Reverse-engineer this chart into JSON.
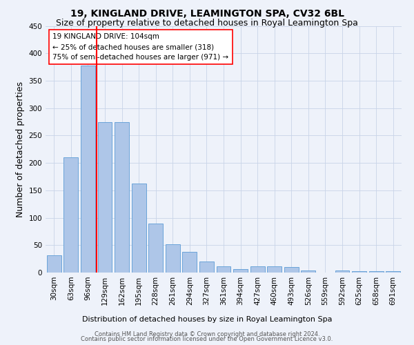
{
  "title": "19, KINGLAND DRIVE, LEAMINGTON SPA, CV32 6BL",
  "subtitle": "Size of property relative to detached houses in Royal Leamington Spa",
  "xlabel": "Distribution of detached houses by size in Royal Leamington Spa",
  "ylabel": "Number of detached properties",
  "footer_line1": "Contains HM Land Registry data © Crown copyright and database right 2024.",
  "footer_line2": "Contains public sector information licensed under the Open Government Licence v3.0.",
  "bar_labels": [
    "30sqm",
    "63sqm",
    "96sqm",
    "129sqm",
    "162sqm",
    "195sqm",
    "228sqm",
    "261sqm",
    "294sqm",
    "327sqm",
    "361sqm",
    "394sqm",
    "427sqm",
    "460sqm",
    "493sqm",
    "526sqm",
    "559sqm",
    "592sqm",
    "625sqm",
    "658sqm",
    "691sqm"
  ],
  "bar_values": [
    32,
    210,
    378,
    275,
    275,
    163,
    90,
    52,
    38,
    20,
    11,
    6,
    11,
    11,
    10,
    4,
    0,
    4,
    3,
    3,
    3
  ],
  "bar_color": "#aec6e8",
  "bar_edgecolor": "#5b9bd5",
  "ylim": [
    0,
    450
  ],
  "yticks": [
    0,
    50,
    100,
    150,
    200,
    250,
    300,
    350,
    400,
    450
  ],
  "vline_x": 2.5,
  "annotation_title": "19 KINGLAND DRIVE: 104sqm",
  "annotation_line2": "← 25% of detached houses are smaller (318)",
  "annotation_line3": "75% of semi-detached houses are larger (971) →",
  "bg_color": "#eef2fa",
  "grid_color": "#c8d4e8",
  "title_fontsize": 10,
  "subtitle_fontsize": 9,
  "ylabel_fontsize": 9,
  "tick_fontsize": 7.5,
  "footer_fontsize": 6.0
}
